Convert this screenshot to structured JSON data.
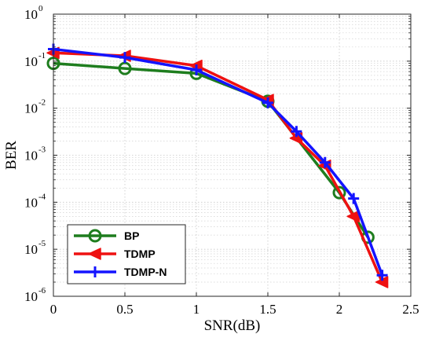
{
  "chart_data": {
    "type": "line",
    "title": "",
    "xlabel": "SNR(dB)",
    "ylabel": "BER",
    "xlim": [
      0,
      2.5
    ],
    "ylim": [
      1e-06,
      1
    ],
    "yscale": "log",
    "grid": true,
    "legend_position": "bottom-left",
    "x_ticks": [
      {
        "value": 0,
        "label": "0"
      },
      {
        "value": 0.5,
        "label": "0.5"
      },
      {
        "value": 1,
        "label": "1"
      },
      {
        "value": 1.5,
        "label": "1.5"
      },
      {
        "value": 2,
        "label": "2"
      },
      {
        "value": 2.5,
        "label": "2.5"
      }
    ],
    "y_ticks": [
      {
        "value": 1,
        "base": "10",
        "exp": "0"
      },
      {
        "value": 0.1,
        "base": "10",
        "exp": "-1"
      },
      {
        "value": 0.01,
        "base": "10",
        "exp": "-2"
      },
      {
        "value": 0.001,
        "base": "10",
        "exp": "-3"
      },
      {
        "value": 0.0001,
        "base": "10",
        "exp": "-4"
      },
      {
        "value": 1e-05,
        "base": "10",
        "exp": "-5"
      },
      {
        "value": 1e-06,
        "base": "10",
        "exp": "-6"
      }
    ],
    "series": [
      {
        "name": "BP",
        "color": "#1e7d1e",
        "marker": "circle",
        "x": [
          0,
          0.5,
          1,
          1.5,
          2,
          2.2
        ],
        "y": [
          0.09,
          0.07,
          0.055,
          0.014,
          0.00016,
          1.8e-05
        ]
      },
      {
        "name": "TDMP",
        "color": "#ee1111",
        "marker": "triangle-left",
        "x": [
          0,
          0.5,
          1,
          1.5,
          1.7,
          1.9,
          2.1,
          2.3
        ],
        "y": [
          0.15,
          0.13,
          0.08,
          0.015,
          0.0023,
          0.0006,
          5e-05,
          2e-06
        ]
      },
      {
        "name": "TDMP-N",
        "color": "#1414ff",
        "marker": "plus",
        "x": [
          0,
          0.5,
          1,
          1.5,
          1.7,
          1.9,
          2.1,
          2.3
        ],
        "y": [
          0.18,
          0.12,
          0.065,
          0.013,
          0.0032,
          0.0007,
          0.00012,
          2.8e-06
        ]
      }
    ]
  }
}
